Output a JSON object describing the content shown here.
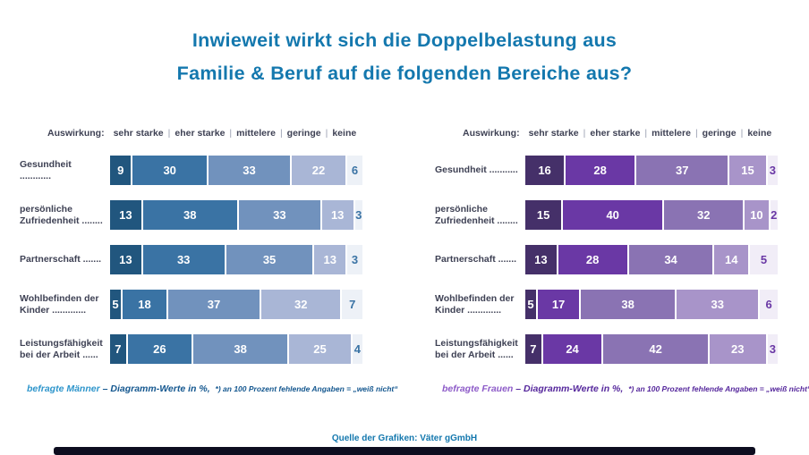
{
  "title": {
    "line1": "Inwieweit wirkt sich die Doppelbelastung aus",
    "line2": "Familie &amp; Beruf auf die folgenden Bereiche aus?"
  },
  "charts": [
    {
      "id": "men",
      "legend_label": "Auswirkung:",
      "dots": [
        "............",
        "........",
        ".......",
        ".............",
        "......"
      ],
      "footnote": {
        "group": "befragte Männer",
        "main": "– Diagramm-Werte in %,",
        "small": "*) an 100 Prozent fehlende Angaben = „weiß nicht“"
      },
      "colors": {
        "segments": [
          "#21567e",
          "#3a73a4",
          "#7192bd",
          "#a9b6d6"
        ],
        "track": "#edf1f7",
        "keine_text": "#3a73a4",
        "label": "#3e4154",
        "footnote_group": "#2e95cb",
        "footnote_rest": "#14578f"
      }
    },
    {
      "id": "women",
      "legend_label": "Auswirkung:",
      "dots": [
        "...........",
        "........",
        ".......",
        ".............",
        "......"
      ],
      "footnote": {
        "group": "befragte Frauen",
        "main": "– Diagramm-Werte in %,",
        "small": "*) an 100 Prozent fehlende Angaben = „weiß nicht“"
      },
      "colors": {
        "segments": [
          "#453069",
          "#6a38a5",
          "#8a73b3",
          "#a894c9"
        ],
        "track": "#f1edf7",
        "keine_text": "#6a38a5",
        "label": "#3e4154",
        "footnote_group": "#8d5bc8",
        "footnote_rest": "#55279c"
      }
    }
  ],
  "chart_data": [
    {
      "type": "bar",
      "stacked": true,
      "orientation": "horizontal",
      "group": "befragte Männer",
      "units": "%",
      "xlim": [
        0,
        100
      ],
      "categories": [
        "Gesundheit",
        "persönliche Zufriedenheit",
        "Partnerschaft",
        "Wohlbefinden der Kinder",
        "Leistungsfähigkeit bei der Arbeit"
      ],
      "series": [
        {
          "name": "sehr starke",
          "values": [
            9,
            13,
            13,
            5,
            7
          ]
        },
        {
          "name": "eher starke",
          "values": [
            30,
            38,
            33,
            18,
            26
          ]
        },
        {
          "name": "mittelere",
          "values": [
            33,
            33,
            35,
            37,
            38
          ]
        },
        {
          "name": "geringe",
          "values": [
            22,
            13,
            13,
            32,
            25
          ]
        },
        {
          "name": "keine",
          "values": [
            6,
            3,
            3,
            7,
            4
          ]
        }
      ]
    },
    {
      "type": "bar",
      "stacked": true,
      "orientation": "horizontal",
      "group": "befragte Frauen",
      "units": "%",
      "xlim": [
        0,
        100
      ],
      "categories": [
        "Gesundheit",
        "persönliche Zufriedenheit",
        "Partnerschaft",
        "Wohlbefinden der Kinder",
        "Leistungsfähigkeit bei der Arbeit"
      ],
      "series": [
        {
          "name": "sehr starke",
          "values": [
            16,
            15,
            13,
            5,
            7
          ]
        },
        {
          "name": "eher starke",
          "values": [
            28,
            40,
            28,
            17,
            24
          ]
        },
        {
          "name": "mittelere",
          "values": [
            37,
            32,
            34,
            38,
            42
          ]
        },
        {
          "name": "geringe",
          "values": [
            15,
            10,
            14,
            33,
            23
          ]
        },
        {
          "name": "keine",
          "values": [
            3,
            2,
            5,
            6,
            3
          ]
        }
      ]
    }
  ],
  "source": "Quelle der Grafiken: Väter gGmbH",
  "colors": {
    "title": "#1478ae",
    "source": "#1478ae",
    "footer_bar": "#0d0d1f",
    "legend_text": "#3e4154",
    "legend_separator": "#99a0b0"
  }
}
